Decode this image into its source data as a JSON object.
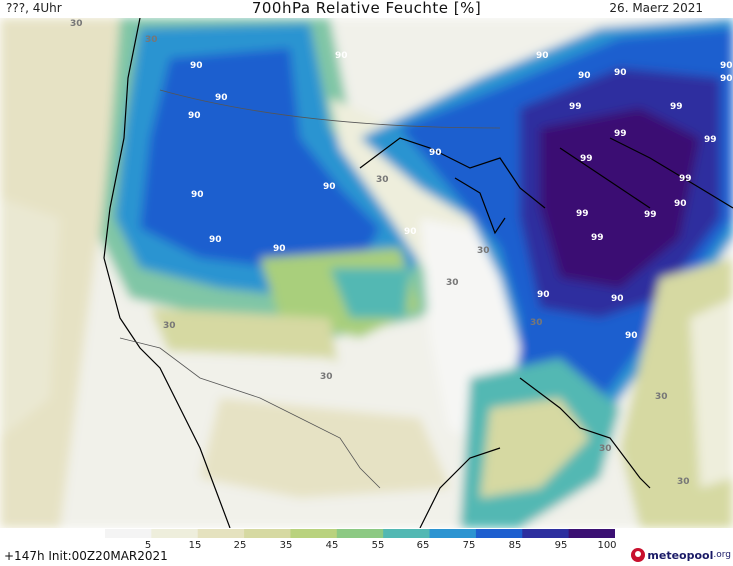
{
  "header": {
    "left": "???, 4Uhr",
    "title": "700hPa Relative Feuchte [%]",
    "right": "26. Maerz 2021"
  },
  "footer": {
    "run": "+147h Init:00Z20MAR2021",
    "brand_name": "meteopool",
    "brand_tld": ".org"
  },
  "colorbar": {
    "ticks": [
      "5",
      "15",
      "25",
      "35",
      "45",
      "55",
      "65",
      "75",
      "85",
      "95",
      "100"
    ],
    "colors": [
      "#f4f4f4",
      "#eeeedc",
      "#e5e2bf",
      "#d6d9a2",
      "#b9d27e",
      "#8cc983",
      "#52b8b3",
      "#2c94d1",
      "#1e5fcf",
      "#2d2f9f",
      "#3b1073"
    ]
  },
  "contour_labels": [
    "30",
    "30",
    "90",
    "90",
    "90",
    "90",
    "90",
    "90",
    "90",
    "90",
    "30",
    "90",
    "90",
    "30",
    "30",
    "30",
    "30",
    "90",
    "90",
    "90",
    "99",
    "99",
    "99",
    "99",
    "99",
    "99",
    "99",
    "99",
    "99",
    "90",
    "90",
    "90",
    "90",
    "30",
    "30",
    "30",
    "30",
    "90",
    "90"
  ]
}
